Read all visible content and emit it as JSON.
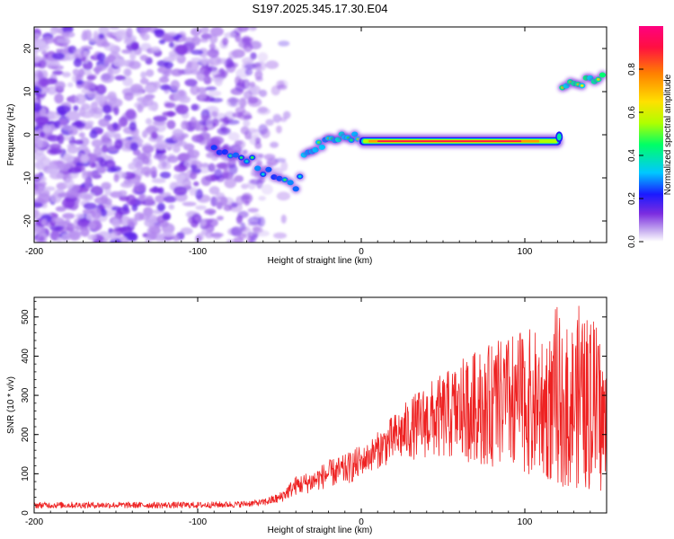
{
  "title": "S197.2025.345.17.30.E04",
  "chart_data": [
    {
      "type": "heatmap",
      "title": "",
      "xlabel": "Height of straight line (km)",
      "ylabel": "Frequency (Hz)",
      "xlim": [
        -200,
        150
      ],
      "ylim": [
        -25,
        25
      ],
      "xticks": [
        -200,
        -100,
        0,
        100
      ],
      "yticks": [
        -20,
        -10,
        0,
        10,
        20
      ],
      "colorbar": {
        "label": "Normalized spectral amplitude",
        "range": [
          0.0,
          1.0
        ],
        "ticks": [
          0.0,
          0.2,
          0.4,
          0.6,
          0.8
        ],
        "tick_labels": [
          "0.0",
          "0.2",
          "0.4",
          "0.6",
          "0.8"
        ],
        "colormap": [
          "#ffffff",
          "#c8b0f0",
          "#7b2ce0",
          "#1a1aff",
          "#00c8ff",
          "#00ff66",
          "#b0ff00",
          "#ffe000",
          "#ff8000",
          "#ff1040",
          "#ff0080"
        ]
      },
      "features": [
        {
          "name": "scattered noise",
          "x_range": [
            -200,
            -55
          ],
          "freq_range": [
            -25,
            25
          ],
          "amplitude": 0.1
        },
        {
          "name": "descending trace",
          "points": [
            [
              -90,
              -3.5
            ],
            [
              -80,
              -4
            ],
            [
              -70,
              -5.5
            ],
            [
              -60,
              -8
            ],
            [
              -50,
              -10
            ],
            [
              -40,
              -13
            ],
            [
              -35,
              -6
            ]
          ],
          "amplitude": 0.25
        },
        {
          "name": "rising transition",
          "points": [
            [
              -35,
              -5
            ],
            [
              -30,
              -3
            ],
            [
              -20,
              -1.5
            ],
            [
              -10,
              0
            ],
            [
              0,
              -1
            ]
          ],
          "amplitude": 0.3
        },
        {
          "name": "steady signal",
          "points": [
            [
              0,
              -1.5
            ],
            [
              120,
              -1.5
            ]
          ],
          "amplitude": 0.9
        },
        {
          "name": "upper band",
          "points": [
            [
              123,
              11
            ],
            [
              135,
              12
            ],
            [
              150,
              13.5
            ]
          ],
          "amplitude": 0.4
        }
      ]
    },
    {
      "type": "line",
      "title": "",
      "xlabel": "Height of straight line (km)",
      "ylabel": "SNR (10 * v/v)",
      "xlim": [
        -200,
        150
      ],
      "ylim": [
        0,
        550
      ],
      "xticks": [
        -200,
        -100,
        0,
        100
      ],
      "yticks": [
        0,
        100,
        200,
        300,
        400,
        500
      ],
      "color": "#ee2222",
      "series": [
        {
          "name": "SNR",
          "x": [
            -200,
            -175,
            -150,
            -125,
            -100,
            -75,
            -60,
            -50,
            -40,
            -35,
            -30,
            -20,
            -10,
            0,
            10,
            20,
            30,
            40,
            50,
            60,
            70,
            80,
            90,
            100,
            110,
            115,
            120,
            125,
            130,
            135,
            140,
            145,
            150
          ],
          "values": [
            20,
            20,
            20,
            20,
            20,
            22,
            27,
            38,
            70,
            75,
            80,
            100,
            110,
            130,
            160,
            190,
            215,
            235,
            245,
            260,
            270,
            275,
            280,
            285,
            275,
            270,
            265,
            270,
            280,
            275,
            280,
            260,
            200
          ]
        }
      ]
    }
  ]
}
